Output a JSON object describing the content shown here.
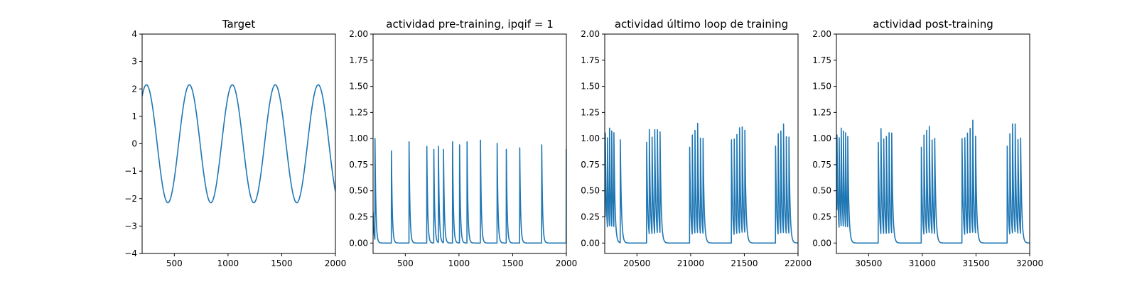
{
  "figure": {
    "background": "#ffffff"
  },
  "colors": {
    "series": "#1f77b4"
  },
  "chart_data": [
    {
      "type": "line",
      "title": "Target",
      "xlabel": "",
      "ylabel": "",
      "xlim": [
        200,
        2000
      ],
      "ylim": [
        -4,
        4
      ],
      "xticks": [
        500,
        1000,
        1500,
        2000
      ],
      "xtick_labels": [
        "500",
        "1000",
        "1500",
        "2000"
      ],
      "yticks": [
        -4,
        -3,
        -2,
        -1,
        0,
        1,
        2,
        3,
        4
      ],
      "ytick_labels": [
        "−4",
        "−3",
        "−2",
        "−1",
        "0",
        "1",
        "2",
        "3",
        "4"
      ],
      "grid": false,
      "series": [
        {
          "kind": "sine",
          "amplitude": 2.15,
          "period": 400,
          "peaks_at": [
            240,
            640,
            1040,
            1440,
            1840
          ],
          "troughs_at": [
            440,
            840,
            1240,
            1640
          ],
          "end_value": -1.65
        }
      ]
    },
    {
      "type": "line",
      "title": "actividad pre-training, ipqif = 1",
      "xlabel": "",
      "ylabel": "",
      "xlim": [
        200,
        2000
      ],
      "ylim": [
        -0.1,
        2.0
      ],
      "xticks": [
        500,
        1000,
        1500,
        2000
      ],
      "xtick_labels": [
        "500",
        "1000",
        "1500",
        "2000"
      ],
      "yticks": [
        0,
        0.25,
        0.5,
        0.75,
        1.0,
        1.25,
        1.5,
        1.75,
        2.0
      ],
      "ytick_labels": [
        "0.00",
        "0.25",
        "0.50",
        "0.75",
        "1.00",
        "1.25",
        "1.50",
        "1.75",
        "2.00"
      ],
      "grid": false,
      "series": [
        {
          "kind": "spikes",
          "decay": 8,
          "start_value": 0.3,
          "spikes": [
            [
              218,
              1.0
            ],
            [
              370,
              1.0
            ],
            [
              535,
              1.0
            ],
            [
              700,
              1.0
            ],
            [
              765,
              1.0
            ],
            [
              808,
              1.0
            ],
            [
              855,
              1.0
            ],
            [
              940,
              1.0
            ],
            [
              1005,
              1.0
            ],
            [
              1075,
              1.0
            ],
            [
              1200,
              1.0
            ],
            [
              1355,
              1.0
            ],
            [
              1440,
              1.0
            ],
            [
              1565,
              1.0
            ],
            [
              1770,
              1.0
            ],
            [
              1998,
              1.0
            ]
          ]
        }
      ]
    },
    {
      "type": "line",
      "title": "actividad último loop de training",
      "xlabel": "",
      "ylabel": "",
      "xlim": [
        20200,
        22000
      ],
      "ylim": [
        -0.1,
        2.0
      ],
      "xticks": [
        20500,
        21000,
        21500,
        22000
      ],
      "xtick_labels": [
        "20500",
        "21000",
        "21500",
        "22000"
      ],
      "yticks": [
        0,
        0.25,
        0.5,
        0.75,
        1.0,
        1.25,
        1.5,
        1.75,
        2.0
      ],
      "ytick_labels": [
        "0.00",
        "0.25",
        "0.50",
        "0.75",
        "1.00",
        "1.25",
        "1.50",
        "1.75",
        "2.00"
      ],
      "grid": false,
      "series": [
        {
          "kind": "spikes",
          "decay": 10,
          "start_value": 0.4,
          "spikes": [
            [
              20205,
              1.12
            ],
            [
              20225,
              1.1
            ],
            [
              20245,
              1.1
            ],
            [
              20265,
              1.1
            ],
            [
              20285,
              1.11
            ],
            [
              20345,
              1.0
            ],
            [
              20590,
              1.0
            ],
            [
              20615,
              1.1
            ],
            [
              20640,
              1.12
            ],
            [
              20665,
              1.17
            ],
            [
              20690,
              1.14
            ],
            [
              20715,
              1.09
            ],
            [
              20990,
              1.0
            ],
            [
              21015,
              1.1
            ],
            [
              21040,
              1.12
            ],
            [
              21065,
              1.16
            ],
            [
              21090,
              1.11
            ],
            [
              21115,
              1.08
            ],
            [
              21380,
              1.0
            ],
            [
              21405,
              1.1
            ],
            [
              21430,
              1.12
            ],
            [
              21455,
              1.16
            ],
            [
              21480,
              1.14
            ],
            [
              21505,
              1.08
            ],
            [
              21790,
              1.0
            ],
            [
              21815,
              1.1
            ],
            [
              21840,
              1.1
            ],
            [
              21865,
              1.14
            ],
            [
              21890,
              1.11
            ],
            [
              21915,
              1.08
            ]
          ]
        }
      ]
    },
    {
      "type": "line",
      "title": "actividad post-training",
      "xlabel": "",
      "ylabel": "",
      "xlim": [
        30200,
        32000
      ],
      "ylim": [
        -0.1,
        2.0
      ],
      "xticks": [
        30500,
        31000,
        31500,
        32000
      ],
      "xtick_labels": [
        "30500",
        "31000",
        "31500",
        "32000"
      ],
      "yticks": [
        0,
        0.25,
        0.5,
        0.75,
        1.0,
        1.25,
        1.5,
        1.75,
        2.0
      ],
      "ytick_labels": [
        "0.00",
        "0.25",
        "0.50",
        "0.75",
        "1.00",
        "1.25",
        "1.50",
        "1.75",
        "2.00"
      ],
      "grid": false,
      "series": [
        {
          "kind": "spikes",
          "decay": 10,
          "start_value": 0.5,
          "spikes": [
            [
              30205,
              1.1
            ],
            [
              30225,
              1.1
            ],
            [
              30245,
              1.1
            ],
            [
              30265,
              1.1
            ],
            [
              30285,
              1.11
            ],
            [
              30305,
              1.1
            ],
            [
              30590,
              1.0
            ],
            [
              30615,
              1.11
            ],
            [
              30640,
              1.1
            ],
            [
              30665,
              1.1
            ],
            [
              30690,
              1.11
            ],
            [
              30715,
              1.08
            ],
            [
              30990,
              1.0
            ],
            [
              31015,
              1.1
            ],
            [
              31040,
              1.12
            ],
            [
              31065,
              1.13
            ],
            [
              31090,
              1.09
            ],
            [
              31115,
              1.08
            ],
            [
              31370,
              1.0
            ],
            [
              31395,
              1.1
            ],
            [
              31420,
              1.12
            ],
            [
              31445,
              1.14
            ],
            [
              31470,
              1.19
            ],
            [
              31495,
              1.13
            ],
            [
              31790,
              1.0
            ],
            [
              31815,
              1.1
            ],
            [
              31840,
              1.17
            ],
            [
              31865,
              1.14
            ],
            [
              31890,
              1.08
            ],
            [
              31915,
              1.07
            ]
          ]
        }
      ]
    }
  ]
}
